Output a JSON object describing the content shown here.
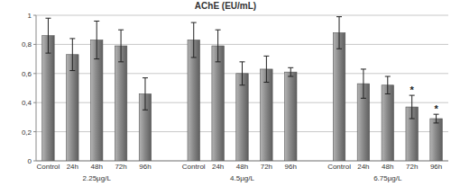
{
  "chart_data": {
    "type": "bar",
    "title": "AChE (EU/mL)",
    "categories": [
      "Control",
      "24h",
      "48h",
      "72h",
      "96h",
      "Control",
      "24h",
      "48h",
      "72h",
      "96h",
      "Control",
      "24h",
      "48h",
      "72h",
      "96h"
    ],
    "values": [
      0.86,
      0.73,
      0.83,
      0.79,
      0.46,
      0.83,
      0.79,
      0.6,
      0.63,
      0.61,
      0.88,
      0.53,
      0.52,
      0.37,
      0.29
    ],
    "errors": [
      0.12,
      0.11,
      0.13,
      0.11,
      0.11,
      0.12,
      0.11,
      0.08,
      0.09,
      0.03,
      0.11,
      0.1,
      0.06,
      0.08,
      0.03
    ],
    "group_labels": [
      "2.25µg/L",
      "4.5µg/L",
      "6.75µg/L"
    ],
    "annotations": [
      {
        "index": 13,
        "text": "*"
      },
      {
        "index": 14,
        "text": "*"
      }
    ],
    "color": "#8a8a8a",
    "ylim": [
      0,
      1
    ],
    "yticks": [
      0,
      {
        "value": 0.2,
        "label": "0,2"
      },
      {
        "value": 0.4,
        "label": "0,4"
      },
      {
        "value": 0.6,
        "label": "0,6"
      },
      {
        "value": 0.8,
        "label": "0,8"
      },
      1
    ],
    "grid": true
  }
}
